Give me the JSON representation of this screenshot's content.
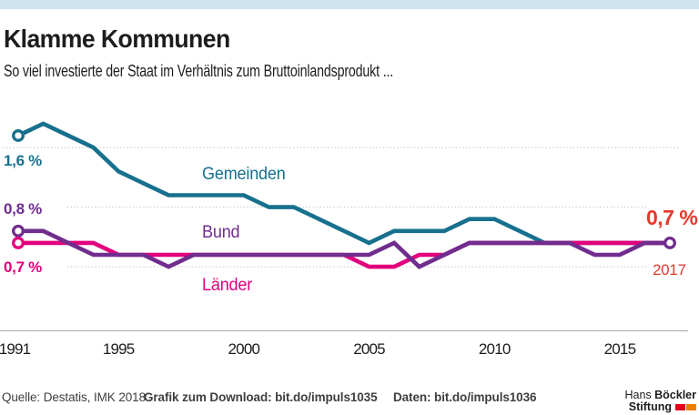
{
  "header": {
    "title": "Klamme Kommunen",
    "subtitle": "So viel investierte der Staat im Verhältnis zum Bruttoinlandsprodukt ..."
  },
  "chart_data": {
    "type": "line",
    "x": [
      1991,
      1992,
      1993,
      1994,
      1995,
      1996,
      1997,
      1998,
      1999,
      2000,
      2001,
      2002,
      2003,
      2004,
      2005,
      2006,
      2007,
      2008,
      2009,
      2010,
      2011,
      2012,
      2013,
      2014,
      2015,
      2016,
      2017
    ],
    "series": [
      {
        "name": "Gemeinden",
        "color": "#17708e",
        "values": [
          1.6,
          1.7,
          1.6,
          1.5,
          1.3,
          1.2,
          1.1,
          1.1,
          1.1,
          1.1,
          1.0,
          1.0,
          0.9,
          0.8,
          0.7,
          0.8,
          0.8,
          0.8,
          0.9,
          0.9,
          0.8,
          0.7,
          0.7,
          0.7,
          0.7,
          0.7,
          0.7
        ]
      },
      {
        "name": "Bund",
        "color": "#702d8e",
        "values": [
          0.8,
          0.8,
          0.7,
          0.6,
          0.6,
          0.6,
          0.5,
          0.6,
          0.6,
          0.6,
          0.6,
          0.6,
          0.6,
          0.6,
          0.6,
          0.7,
          0.5,
          0.6,
          0.7,
          0.7,
          0.7,
          0.7,
          0.7,
          0.6,
          0.6,
          0.7,
          0.7
        ]
      },
      {
        "name": "Länder",
        "color": "#e2007d",
        "values": [
          0.7,
          0.7,
          0.7,
          0.7,
          0.6,
          0.6,
          0.6,
          0.6,
          0.6,
          0.6,
          0.6,
          0.6,
          0.6,
          0.6,
          0.5,
          0.5,
          0.6,
          0.6,
          0.7,
          0.7,
          0.7,
          0.7,
          0.7,
          0.7,
          0.7,
          0.7,
          0.7
        ]
      }
    ],
    "draw_order": [
      0,
      2,
      1
    ],
    "markers": [
      {
        "series": 0,
        "year": 1991,
        "value": 1.6
      },
      {
        "series": 1,
        "year": 1991,
        "value": 0.8
      },
      {
        "series": 2,
        "year": 1991,
        "value": 0.7
      },
      {
        "series": 1,
        "year": 2017,
        "value": 0.7
      }
    ],
    "x_ticks": [
      1991,
      1995,
      2000,
      2005,
      2010,
      2015
    ],
    "gridlines": [
      1.5,
      1.0,
      0.5
    ],
    "ylim": [
      0.35,
      1.75
    ],
    "xlabel": "",
    "ylabel": "",
    "title": "Klamme Kommunen",
    "legend_position": "inline-labels",
    "grid": "dotted-horizontal"
  },
  "annotations": {
    "gemeinden_start": "1,6 %",
    "bund_start": "0,8 %",
    "laender_start": "0,7 %",
    "gemeinden_label": "Gemeinden",
    "bund_label": "Bund",
    "laender_label": "Länder",
    "end_value": "0,7 %",
    "end_year": "2017",
    "end_color": "#e6392c"
  },
  "footer": {
    "source": "Quelle: Destatis, IMK 2018",
    "download": "Grafik zum Download: bit.do/impuls1035",
    "data_link": "Daten: bit.do/impuls1036",
    "logo": {
      "name_regular": "Hans",
      "name_bold": "Böckler",
      "line2": "Stiftung",
      "flag_red": "#e2001a",
      "flag_orange": "#ef7d00"
    }
  },
  "colors": {
    "topbar": "#cfe3ee",
    "text": "#1d1d1b",
    "gridline": "#c9c9c9",
    "axis": "#b3b2b2",
    "footer_rule": "#4b4b4a",
    "footer_text": "#3f3f3e"
  }
}
